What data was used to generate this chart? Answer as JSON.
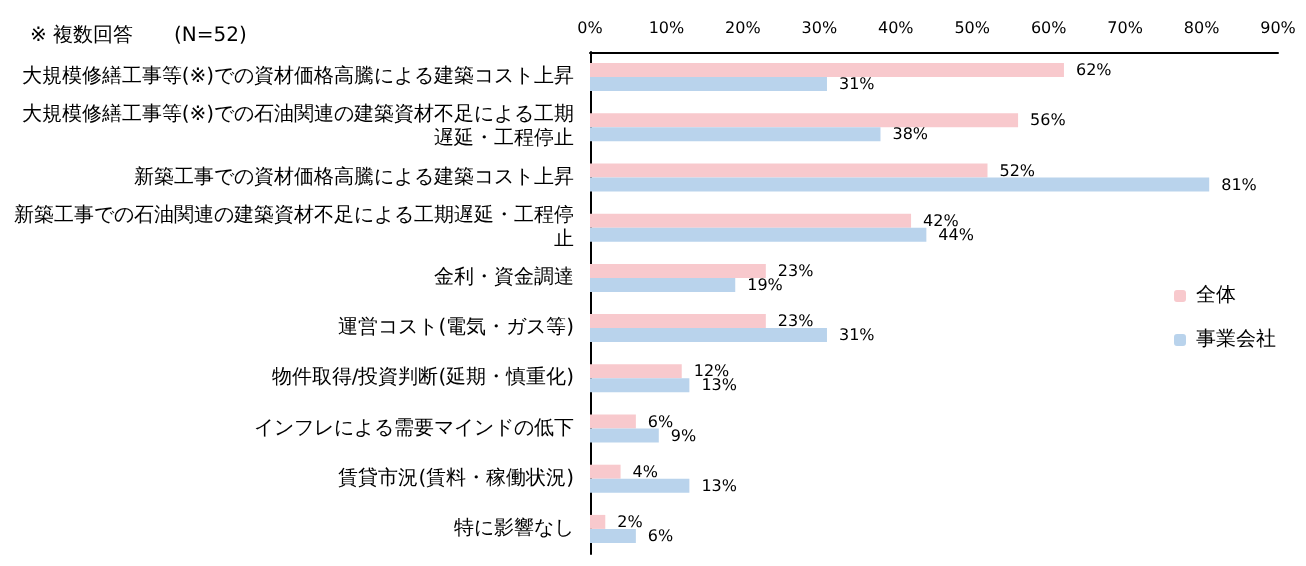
{
  "chart_data": {
    "type": "bar",
    "orientation": "horizontal",
    "title": "※ 複数回答",
    "subtitle": "(N=52)",
    "categories": [
      "大規模修繕工事等(※)での資材価格高騰による建築コスト上昇",
      "大規模修繕工事等(※)での石油関連の建築資材不足による工期遅延・工程停止",
      "新築工事での資材価格高騰による建築コスト上昇",
      "新築工事での石油関連の建築資材不足による工期遅延・工程停止",
      "金利・資金調達",
      "運営コスト(電気・ガス等)",
      "物件取得/投資判断(延期・慎重化)",
      "インフレによる需要マインドの低下",
      "賃貸市況(賃料・稼働状況)",
      "特に影響なし"
    ],
    "series": [
      {
        "name": "全体",
        "color": "#f8c9cd",
        "values": [
          62,
          56,
          52,
          42,
          23,
          23,
          12,
          6,
          4,
          2
        ],
        "value_labels": [
          "62%",
          "56%",
          "52%",
          "42%",
          "23%",
          "23%",
          "12%",
          "6%",
          "4%",
          "2%"
        ]
      },
      {
        "name": "事業会社",
        "color": "#b9d3ec",
        "values": [
          31,
          38,
          81,
          44,
          19,
          31,
          13,
          9,
          13,
          6
        ],
        "value_labels": [
          "31%",
          "38%",
          "81%",
          "44%",
          "19%",
          "31%",
          "13%",
          "9%",
          "13%",
          "6%"
        ]
      }
    ],
    "xlim": [
      0,
      90
    ],
    "xticks": [
      {
        "value": 0,
        "label": "0%"
      },
      {
        "value": 10,
        "label": "10%"
      },
      {
        "value": 20,
        "label": "20%"
      },
      {
        "value": 30,
        "label": "30%"
      },
      {
        "value": 40,
        "label": "40%"
      },
      {
        "value": 50,
        "label": "50%"
      },
      {
        "value": 60,
        "label": "60%"
      },
      {
        "value": 70,
        "label": "70%"
      },
      {
        "value": 80,
        "label": "80%"
      },
      {
        "value": 90,
        "label": "90%"
      }
    ],
    "grid": false,
    "legend": "right"
  }
}
